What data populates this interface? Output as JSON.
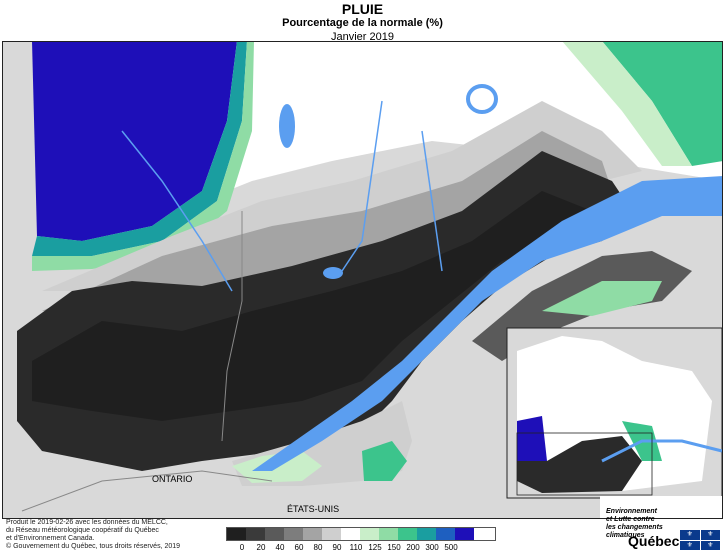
{
  "header": {
    "title": "PLUIE",
    "subtitle": "Pourcentage de la normale (%)",
    "period": "Janvier 2019"
  },
  "map": {
    "region_labels": {
      "ontario": "ONTARIO",
      "usa": "ÉTATS-UNIS"
    },
    "colors": {
      "land_outside": "#d9d9d9",
      "water": "#5b9ef0",
      "frame": "#222222"
    }
  },
  "legend": {
    "ticks": [
      "0",
      "20",
      "40",
      "60",
      "80",
      "90",
      "110",
      "125",
      "150",
      "200",
      "300",
      "500"
    ],
    "colors": [
      "#1f1f1f",
      "#3a3a3a",
      "#5a5a5a",
      "#7d7d7d",
      "#a4a4a4",
      "#cfcfcf",
      "#ffffff",
      "#c9eec9",
      "#8fdca5",
      "#3cc48c",
      "#1a9ea0",
      "#1e5fc0",
      "#1e0fb8"
    ]
  },
  "footer": {
    "note_lines": [
      "Produit le 2019-02-26 avec les données du MELCC,",
      "du Réseau météorologique coopératif du Québec",
      "et d'Environnement Canada."
    ],
    "copyright": "© Gouvernement du Québec, tous droits réservés, 2019"
  },
  "logo": {
    "ministry_lines": [
      "Environnement",
      "et Lutte contre",
      "les changements",
      "climatiques"
    ],
    "name": "Québec"
  }
}
